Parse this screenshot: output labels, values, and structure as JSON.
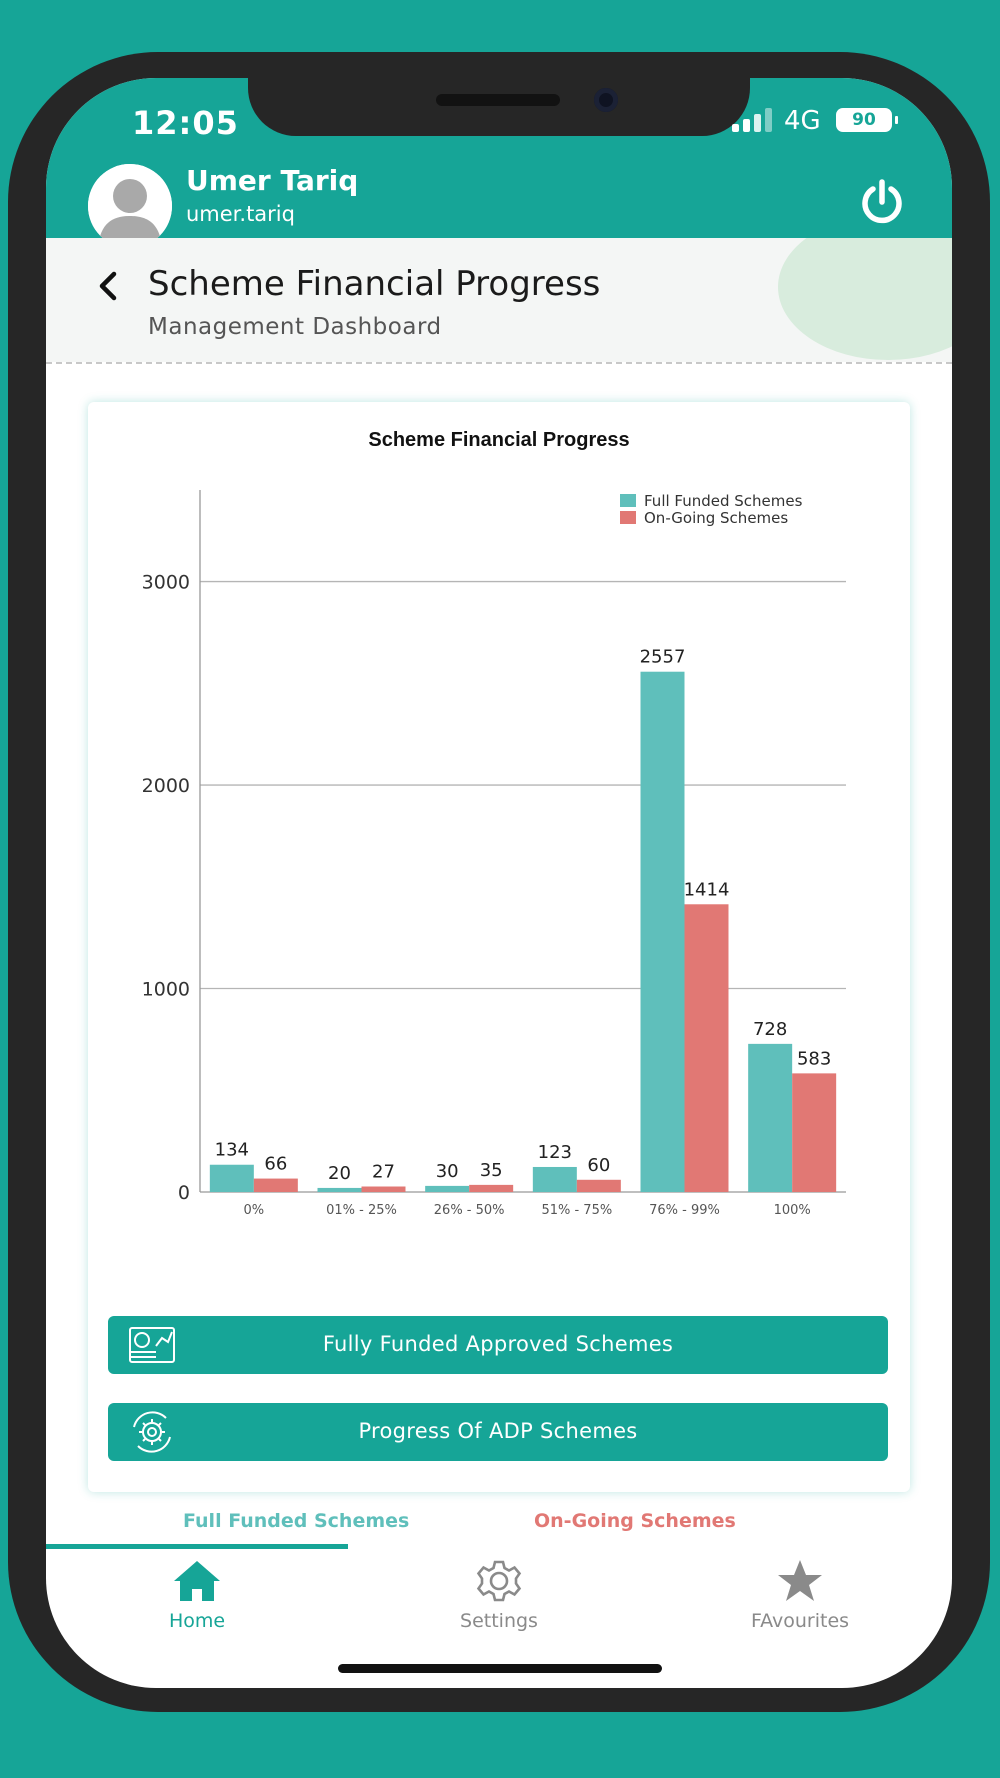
{
  "status_bar": {
    "time": "12:05",
    "network": "4G",
    "battery": "90"
  },
  "user": {
    "name": "Umer Tariq",
    "handle": "umer.tariq"
  },
  "header": {
    "title": "Scheme Financial Progress",
    "subtitle": "Management Dashboard"
  },
  "colors": {
    "teal": "#16a597",
    "bar_teal": "#5fbfbb",
    "bar_red": "#e17874",
    "active": "#16a597",
    "inactive": "#8a8a8a"
  },
  "chart_data": {
    "type": "bar",
    "title": "Scheme Financial Progress",
    "categories": [
      "0%",
      "01% - 25%",
      "26% - 50%",
      "51% - 75%",
      "76% - 99%",
      "100%"
    ],
    "series": [
      {
        "name": "Full Funded Schemes",
        "values": [
          134,
          20,
          30,
          123,
          2557,
          728
        ]
      },
      {
        "name": "On-Going Schemes",
        "values": [
          66,
          27,
          35,
          60,
          1414,
          583
        ]
      }
    ],
    "yticks": [
      0,
      1000,
      2000,
      3000
    ],
    "ylim": [
      0,
      3450
    ],
    "grid": true,
    "legend": "top-right"
  },
  "summary": {
    "full_funded": "Full Funded Schemes",
    "ongoing": "On-Going Schemes"
  },
  "buttons": {
    "fully_funded": "Fully Funded Approved Schemes",
    "adp_progress": "Progress Of ADP Schemes"
  },
  "nav": {
    "home": "Home",
    "settings": "Settings",
    "favourites": "FAvourites"
  }
}
